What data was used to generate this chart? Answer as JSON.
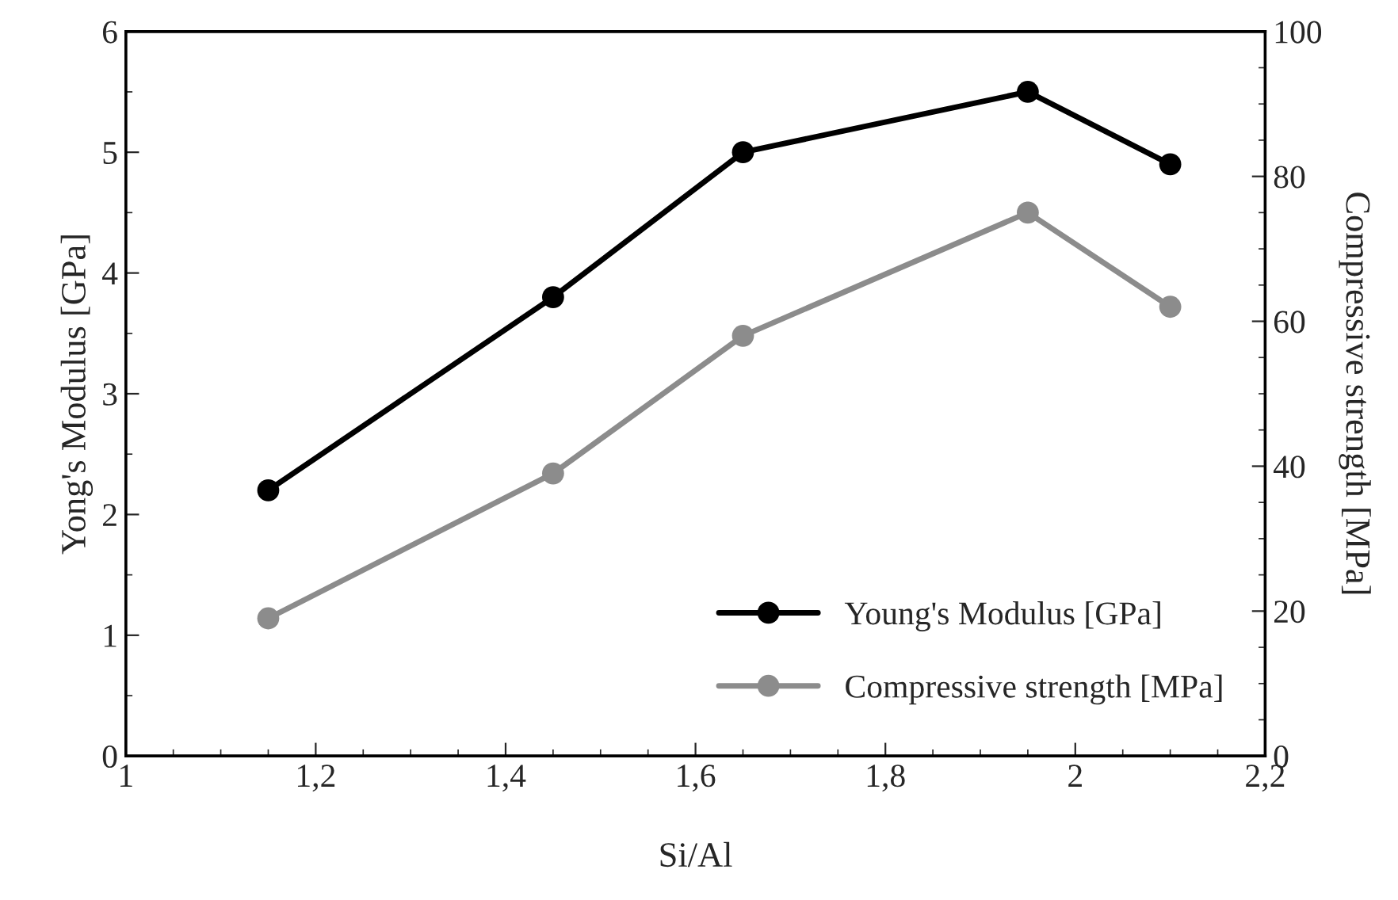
{
  "chart_data": {
    "type": "line",
    "xlabel": "Si/Al",
    "ylabel": "Yong's Modulus [GPa]",
    "y2label": "Compressive strength [MPa]",
    "xlim": [
      1,
      2.2
    ],
    "xticks": [
      1,
      {
        "value": 1.2,
        "label": "1,2"
      },
      {
        "value": 1.4,
        "label": "1,4"
      },
      {
        "value": 1.6,
        "label": "1,6"
      },
      {
        "value": 1.8,
        "label": "1,8"
      },
      2,
      {
        "value": 2.2,
        "label": "2,2"
      }
    ],
    "ylim": [
      0,
      6
    ],
    "yticks": [
      0,
      1,
      2,
      3,
      4,
      5,
      6
    ],
    "y2lim": [
      0,
      100
    ],
    "y2ticks": [
      0,
      20,
      40,
      60,
      80,
      100
    ],
    "x": [
      1.15,
      1.45,
      1.65,
      1.95,
      2.1
    ],
    "series": [
      {
        "name": "Young's Modulus [GPa]",
        "color": "#000000",
        "values": [
          2.2,
          3.8,
          5.0,
          5.5,
          4.9
        ]
      },
      {
        "name": "Compressive strength [MPa]",
        "color": "#8c8c8c",
        "axis": "y2",
        "values": [
          19,
          39,
          58,
          75,
          62
        ]
      }
    ],
    "marker": "circle",
    "line_style": "solid",
    "grid": false,
    "legend": "bottom right"
  }
}
